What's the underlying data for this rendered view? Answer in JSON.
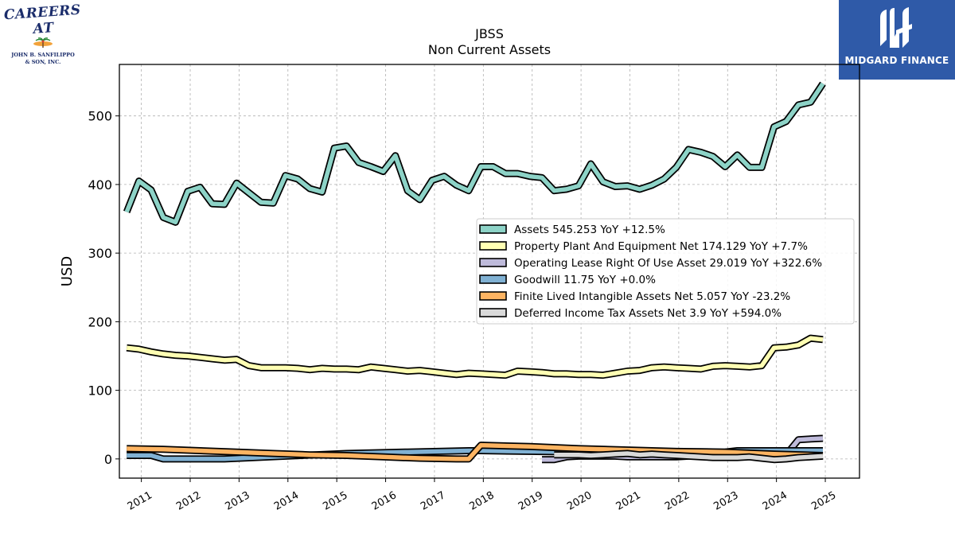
{
  "logos": {
    "left_line1": "CAREERS AT",
    "left_line2": "JOHN B. SANFILIPPO",
    "left_line3": "& SON, INC.",
    "right_name": "MIDGARD FINANCE",
    "right_bg": "#2f5aa8"
  },
  "chart_data": {
    "type": "line",
    "title": "JBSS",
    "subtitle": "Non Current  Assets",
    "ylabel": "USD",
    "xlabel": "",
    "xlim": [
      2010.55,
      2025.7
    ],
    "ylim": [
      -28,
      575
    ],
    "yticks": [
      0,
      100,
      200,
      300,
      400,
      500
    ],
    "xticks": [
      2011,
      2012,
      2013,
      2014,
      2015,
      2016,
      2017,
      2018,
      2019,
      2020,
      2021,
      2022,
      2023,
      2024,
      2025
    ],
    "grid": true,
    "legend_position": "center-right",
    "series": [
      {
        "name": "Assets",
        "legend": "Assets  545.253 YoY +12.5%",
        "color": "#8dd3c7",
        "x": [
          2010.7,
          2010.95,
          2011.2,
          2011.45,
          2011.7,
          2011.95,
          2012.2,
          2012.45,
          2012.7,
          2012.95,
          2013.2,
          2013.45,
          2013.7,
          2013.95,
          2014.2,
          2014.45,
          2014.7,
          2014.95,
          2015.2,
          2015.45,
          2015.7,
          2015.95,
          2016.2,
          2016.45,
          2016.7,
          2016.95,
          2017.2,
          2017.45,
          2017.7,
          2017.95,
          2018.2,
          2018.45,
          2018.7,
          2018.95,
          2019.2,
          2019.45,
          2019.7,
          2019.95,
          2020.2,
          2020.45,
          2020.7,
          2020.95,
          2021.2,
          2021.45,
          2021.7,
          2021.95,
          2022.2,
          2022.45,
          2022.7,
          2022.95,
          2023.2,
          2023.45,
          2023.7,
          2023.95,
          2024.2,
          2024.45,
          2024.7,
          2024.95
        ],
        "y": [
          360,
          405,
          392,
          352,
          345,
          390,
          396,
          372,
          371,
          402,
          388,
          374,
          373,
          413,
          408,
          394,
          389,
          453,
          456,
          432,
          426,
          419,
          442,
          391,
          378,
          406,
          412,
          399,
          391,
          426,
          426,
          416,
          416,
          412,
          410,
          391,
          393,
          398,
          430,
          404,
          397,
          398,
          393,
          399,
          408,
          425,
          451,
          447,
          441,
          426,
          443,
          425,
          425,
          484,
          492,
          516,
          520,
          547
        ]
      },
      {
        "name": "Property Plant And Equipment Net",
        "legend": "Property Plant And Equipment Net  174.129 YoY +7.7%",
        "color": "#ffffb3",
        "x": [
          2010.7,
          2010.95,
          2011.2,
          2011.45,
          2011.7,
          2011.95,
          2012.2,
          2012.45,
          2012.7,
          2012.95,
          2013.2,
          2013.45,
          2013.7,
          2013.95,
          2014.2,
          2014.45,
          2014.7,
          2014.95,
          2015.2,
          2015.45,
          2015.7,
          2015.95,
          2016.2,
          2016.45,
          2016.7,
          2016.95,
          2017.2,
          2017.45,
          2017.7,
          2017.95,
          2018.2,
          2018.45,
          2018.7,
          2018.95,
          2019.2,
          2019.45,
          2019.7,
          2019.95,
          2020.2,
          2020.45,
          2020.7,
          2020.95,
          2021.2,
          2021.45,
          2021.7,
          2021.95,
          2022.2,
          2022.45,
          2022.7,
          2022.95,
          2023.2,
          2023.45,
          2023.7,
          2023.95,
          2024.2,
          2024.45,
          2024.7,
          2024.95
        ],
        "y": [
          162,
          160,
          156,
          153,
          151,
          150,
          148,
          146,
          144,
          145,
          136,
          133,
          133,
          133,
          132,
          130,
          132,
          131,
          131,
          130,
          134,
          132,
          130,
          128,
          129,
          127,
          125,
          123,
          125,
          124,
          123,
          122,
          128,
          127,
          126,
          124,
          124,
          123,
          123,
          122,
          125,
          128,
          129,
          133,
          134,
          133,
          132,
          131,
          135,
          136,
          135,
          134,
          136,
          162,
          163,
          166,
          176,
          174
        ]
      },
      {
        "name": "Operating Lease Right Of Use Asset",
        "legend": "Operating Lease Right Of Use Asset  29.019 YoY +322.6%",
        "color": "#bebada",
        "x": [
          2019.2,
          2019.45,
          2019.7,
          2019.95,
          2020.2,
          2020.45,
          2020.7,
          2020.95,
          2021.2,
          2021.45,
          2021.7,
          2021.95,
          2022.2,
          2022.45,
          2022.7,
          2022.95,
          2023.2,
          2023.45,
          2023.7,
          2023.95,
          2024.2,
          2024.45,
          2024.7,
          2024.95
        ],
        "y": [
          -1,
          -1,
          3,
          4,
          4,
          4,
          4,
          3,
          3,
          3,
          3,
          3,
          4,
          4,
          4,
          6,
          6,
          6,
          6,
          6,
          6,
          28,
          29,
          30
        ]
      },
      {
        "name": "Goodwill",
        "legend": "Goodwill  11.75 YoY +0.0%",
        "color": "#80b1d3",
        "x": [
          2010.7,
          2011.2,
          2011.45,
          2012.7,
          2013.95,
          2015.2,
          2016.45,
          2017.7,
          2017.95,
          2018.95,
          2019.95,
          2020.95,
          2021.95,
          2022.95,
          2023.2,
          2023.95,
          2024.95
        ],
        "y": [
          5,
          5,
          0,
          0,
          4,
          8,
          10,
          12,
          12,
          11,
          10,
          9,
          9,
          10,
          12,
          12,
          12
        ]
      },
      {
        "name": "Finite Lived Intangible Assets Net",
        "legend": "Finite Lived Intangible Assets Net  5.057 YoY -23.2%",
        "color": "#fdb462",
        "x": [
          2010.7,
          2011.45,
          2012.2,
          2012.95,
          2013.7,
          2014.45,
          2015.2,
          2015.95,
          2016.7,
          2017.45,
          2017.7,
          2017.95,
          2018.95,
          2019.95,
          2020.95,
          2021.95,
          2022.95,
          2023.95,
          2024.95
        ],
        "y": [
          15,
          14,
          12,
          10,
          8,
          6,
          5,
          3,
          1,
          0,
          0,
          20,
          18,
          15,
          13,
          11,
          10,
          7,
          5
        ]
      },
      {
        "name": "Deferred Income Tax Assets Net",
        "legend": "Deferred Income Tax Assets Net  3.9 YoY +594.0%",
        "color": "#d9d9d9",
        "x": [
          2019.45,
          2019.7,
          2019.95,
          2020.2,
          2020.45,
          2020.7,
          2020.95,
          2021.2,
          2021.45,
          2021.7,
          2021.95,
          2022.2,
          2022.45,
          2022.7,
          2022.95,
          2023.2,
          2023.45,
          2023.7,
          2023.95,
          2024.2,
          2024.45,
          2024.7,
          2024.95
        ],
        "y": [
          6,
          6,
          6,
          5,
          6,
          7,
          8,
          6,
          7,
          6,
          5,
          4,
          3,
          2,
          2,
          2,
          3,
          1,
          -1,
          0,
          2,
          3,
          4
        ]
      }
    ]
  }
}
